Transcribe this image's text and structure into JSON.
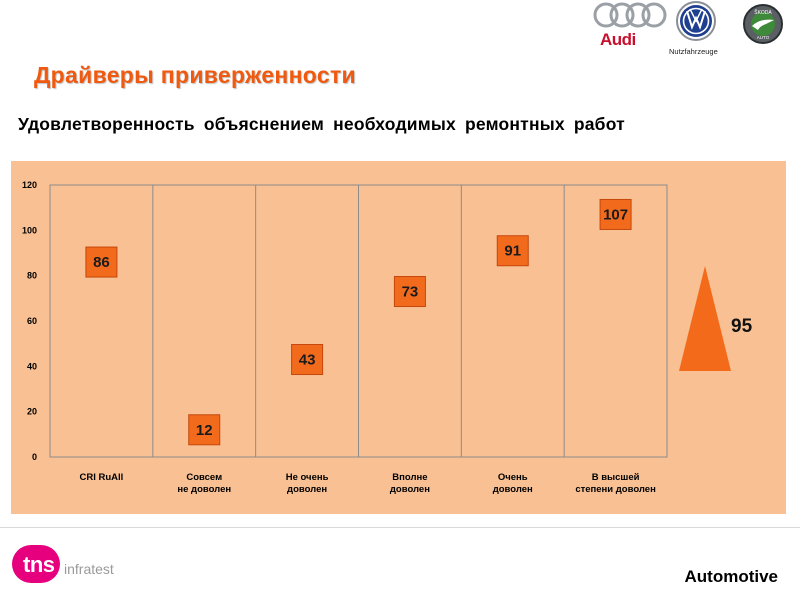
{
  "page": {
    "title": "Драйверы приверженности",
    "subtitle": "Удовлетворенность объяснением необходимых ремонтных работ",
    "footer_right": "Automotive"
  },
  "logos": {
    "audi_text": "Audi",
    "vw_text": "Nutzfahrzeuge",
    "skoda_text": "ŠKODA",
    "skoda_sub": "AUTO",
    "tns_text": "tns",
    "tns_sub": "infratest"
  },
  "colors": {
    "title": "#ef5a10",
    "panel": "#f9c093",
    "marker_fill": "#f26b1d",
    "marker_stroke": "#c5470b",
    "triangle": "#f36b1a"
  },
  "chart_data": {
    "type": "scatter",
    "categories": [
      [
        "CRI RuAll"
      ],
      [
        "Совсем",
        "не доволен"
      ],
      [
        "Не очень",
        "доволен"
      ],
      [
        "Вполне",
        "доволен"
      ],
      [
        "Очень",
        "доволен"
      ],
      [
        "В высшей",
        "степени доволен"
      ]
    ],
    "values": [
      86,
      12,
      43,
      73,
      91,
      107
    ],
    "data_labels": [
      "86",
      "12",
      "43",
      "73",
      "91",
      "107"
    ],
    "ylim": [
      0,
      120
    ],
    "yticks": [
      0,
      20,
      40,
      60,
      80,
      100,
      120
    ],
    "grid": false,
    "legend": "none",
    "title": "",
    "xlabel": "",
    "ylabel": "",
    "indicator": {
      "shape": "triangle",
      "value": "95"
    }
  }
}
